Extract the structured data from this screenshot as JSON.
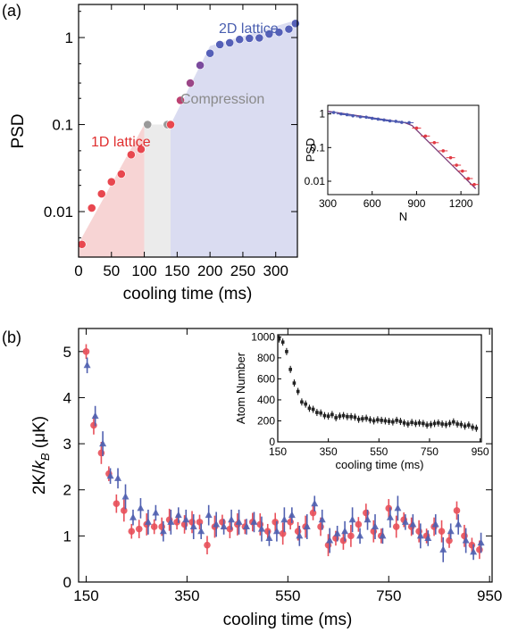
{
  "chart_data": [
    {
      "panel": "(a)",
      "type": "scatter",
      "xlabel": "cooling time (ms)",
      "ylabel": "PSD",
      "yscale": "log",
      "xlim": [
        0,
        333
      ],
      "ylim": [
        0.003,
        2.4
      ],
      "xticks": [
        "0",
        "50",
        "100",
        "150",
        "200",
        "250",
        "300"
      ],
      "yticks": [
        "0.01",
        "0.1",
        "1"
      ],
      "annotations": [
        {
          "text": "1D lattice",
          "color": "#e03030"
        },
        {
          "text": "Compression",
          "color": "#8a8a8a"
        },
        {
          "text": "2D lattice",
          "color": "#4a5fb0"
        }
      ],
      "stages": [
        {
          "name": "1D lattice",
          "x": [
            0,
            100
          ],
          "color": "#f6cccc"
        },
        {
          "name": "Compression",
          "x": [
            100,
            140
          ],
          "color": "#e8e8e8"
        },
        {
          "name": "2D lattice",
          "x": [
            140,
            333
          ],
          "color": "#d4d6ee"
        }
      ],
      "points": {
        "x": [
          5,
          20,
          35,
          50,
          65,
          80,
          95,
          105,
          135,
          140,
          155,
          170,
          185,
          200,
          215,
          230,
          245,
          260,
          275,
          290,
          305,
          320,
          330
        ],
        "y": [
          0.0042,
          0.011,
          0.016,
          0.022,
          0.027,
          0.045,
          0.052,
          0.1,
          0.1,
          0.1,
          0.19,
          0.3,
          0.48,
          0.66,
          0.83,
          0.87,
          0.95,
          0.98,
          0.99,
          1.1,
          1.15,
          1.25,
          1.45
        ]
      },
      "inset": {
        "type": "scatter",
        "xlabel": "N",
        "ylabel": "PSD",
        "yscale": "log",
        "xlim": [
          300,
          1320
        ],
        "ylim": [
          0.004,
          1.8
        ],
        "xticks": [
          "300",
          "600",
          "900",
          "1200"
        ],
        "yticks": [
          "0.01",
          "0.1",
          "1"
        ],
        "points": {
          "x": [
            340,
            390,
            430,
            470,
            520,
            560,
            600,
            640,
            680,
            720,
            760,
            800,
            850,
            900,
            960,
            1020,
            1080,
            1130,
            1170,
            1210,
            1250,
            1290
          ],
          "y": [
            1.1,
            1.0,
            0.95,
            0.88,
            0.82,
            0.8,
            0.74,
            0.7,
            0.66,
            0.62,
            0.6,
            0.56,
            0.55,
            0.38,
            0.22,
            0.14,
            0.08,
            0.05,
            0.03,
            0.02,
            0.012,
            0.008
          ]
        },
        "fit": {
          "x": [
            300,
            820,
            870,
            1300
          ],
          "y": [
            1.2,
            0.55,
            0.45,
            0.006
          ]
        }
      }
    },
    {
      "panel": "(b)",
      "type": "scatter",
      "xlabel": "cooling time (ms)",
      "ylabel": "2K/k_B (μK)",
      "ylabel_parts": [
        "2K/",
        "k",
        "B",
        " (μK)"
      ],
      "xlim": [
        135,
        955
      ],
      "ylim": [
        0,
        5.5
      ],
      "xticks": [
        "150",
        "350",
        "550",
        "750",
        "950"
      ],
      "yticks": [
        "0",
        "1",
        "2",
        "3",
        "4",
        "5"
      ],
      "series": [
        {
          "color": "#e8505a",
          "x": [
            150,
            165,
            180,
            195,
            210,
            225,
            240,
            255,
            270,
            285,
            300,
            315,
            330,
            345,
            360,
            375,
            390,
            405,
            420,
            435,
            450,
            465,
            480,
            495,
            510,
            525,
            540,
            555,
            570,
            585,
            600,
            615,
            630,
            645,
            660,
            675,
            690,
            705,
            720,
            735,
            750,
            765,
            780,
            795,
            810,
            825,
            840,
            855,
            870,
            885,
            900,
            915,
            930
          ],
          "y": [
            5.0,
            3.4,
            2.8,
            2.35,
            1.7,
            1.55,
            1.1,
            1.15,
            1.25,
            1.2,
            1.2,
            1.35,
            1.3,
            1.25,
            1.3,
            1.3,
            0.8,
            1.2,
            1.3,
            1.15,
            1.25,
            1.2,
            1.3,
            1.25,
            1.1,
            1.3,
            1.05,
            1.3,
            1.1,
            1.2,
            1.5,
            1.2,
            0.8,
            0.95,
            0.9,
            1.0,
            1.25,
            1.5,
            1.1,
            1.0,
            1.6,
            1.2,
            1.35,
            1.2,
            1.1,
            1.0,
            1.2,
            1.1,
            0.9,
            1.55,
            1.0,
            0.8,
            0.7
          ]
        },
        {
          "color": "#5060b0",
          "x": [
            152,
            168,
            183,
            198,
            213,
            228,
            243,
            258,
            273,
            288,
            303,
            318,
            333,
            348,
            363,
            378,
            393,
            408,
            423,
            438,
            453,
            468,
            483,
            498,
            513,
            528,
            543,
            558,
            573,
            588,
            603,
            618,
            633,
            648,
            663,
            678,
            693,
            708,
            723,
            738,
            753,
            768,
            783,
            798,
            813,
            828,
            843,
            858,
            873,
            888,
            903,
            918,
            933
          ],
          "y": [
            4.7,
            3.6,
            3.0,
            2.3,
            2.25,
            1.85,
            1.4,
            1.6,
            1.3,
            1.5,
            1.1,
            1.3,
            1.45,
            1.35,
            1.2,
            1.1,
            1.45,
            1.25,
            1.2,
            1.35,
            1.3,
            1.2,
            1.3,
            1.15,
            0.95,
            1.1,
            1.35,
            1.45,
            1.0,
            1.2,
            1.7,
            1.35,
            0.9,
            1.05,
            1.1,
            1.35,
            1.0,
            1.35,
            1.2,
            1.0,
            1.4,
            1.6,
            1.3,
            1.25,
            1.0,
            0.95,
            1.25,
            0.7,
            1.1,
            1.25,
            0.9,
            0.65,
            0.85
          ]
        }
      ],
      "inset": {
        "type": "scatter",
        "xlabel": "cooling time (ms)",
        "ylabel": "Atom Number",
        "xlim": [
          150,
          955
        ],
        "ylim": [
          0,
          1020
        ],
        "xticks": [
          "150",
          "350",
          "550",
          "750",
          "950"
        ],
        "yticks": [
          "0",
          "200",
          "400",
          "600",
          "800",
          "1000"
        ],
        "points": {
          "x": [
            155,
            170,
            185,
            200,
            215,
            230,
            245,
            260,
            275,
            290,
            305,
            320,
            335,
            350,
            365,
            380,
            395,
            410,
            425,
            440,
            455,
            470,
            485,
            500,
            515,
            530,
            545,
            560,
            575,
            590,
            605,
            620,
            635,
            650,
            665,
            680,
            695,
            710,
            725,
            740,
            755,
            770,
            785,
            800,
            815,
            830,
            845,
            860,
            875,
            890,
            905,
            920,
            935
          ],
          "y": [
            980,
            950,
            860,
            690,
            560,
            480,
            380,
            360,
            320,
            310,
            280,
            275,
            250,
            245,
            260,
            230,
            245,
            250,
            240,
            240,
            235,
            215,
            220,
            225,
            210,
            200,
            210,
            205,
            200,
            195,
            190,
            205,
            195,
            180,
            170,
            185,
            175,
            180,
            175,
            160,
            165,
            175,
            180,
            170,
            165,
            175,
            190,
            170,
            165,
            150,
            160,
            140,
            130
          ]
        }
      }
    }
  ]
}
